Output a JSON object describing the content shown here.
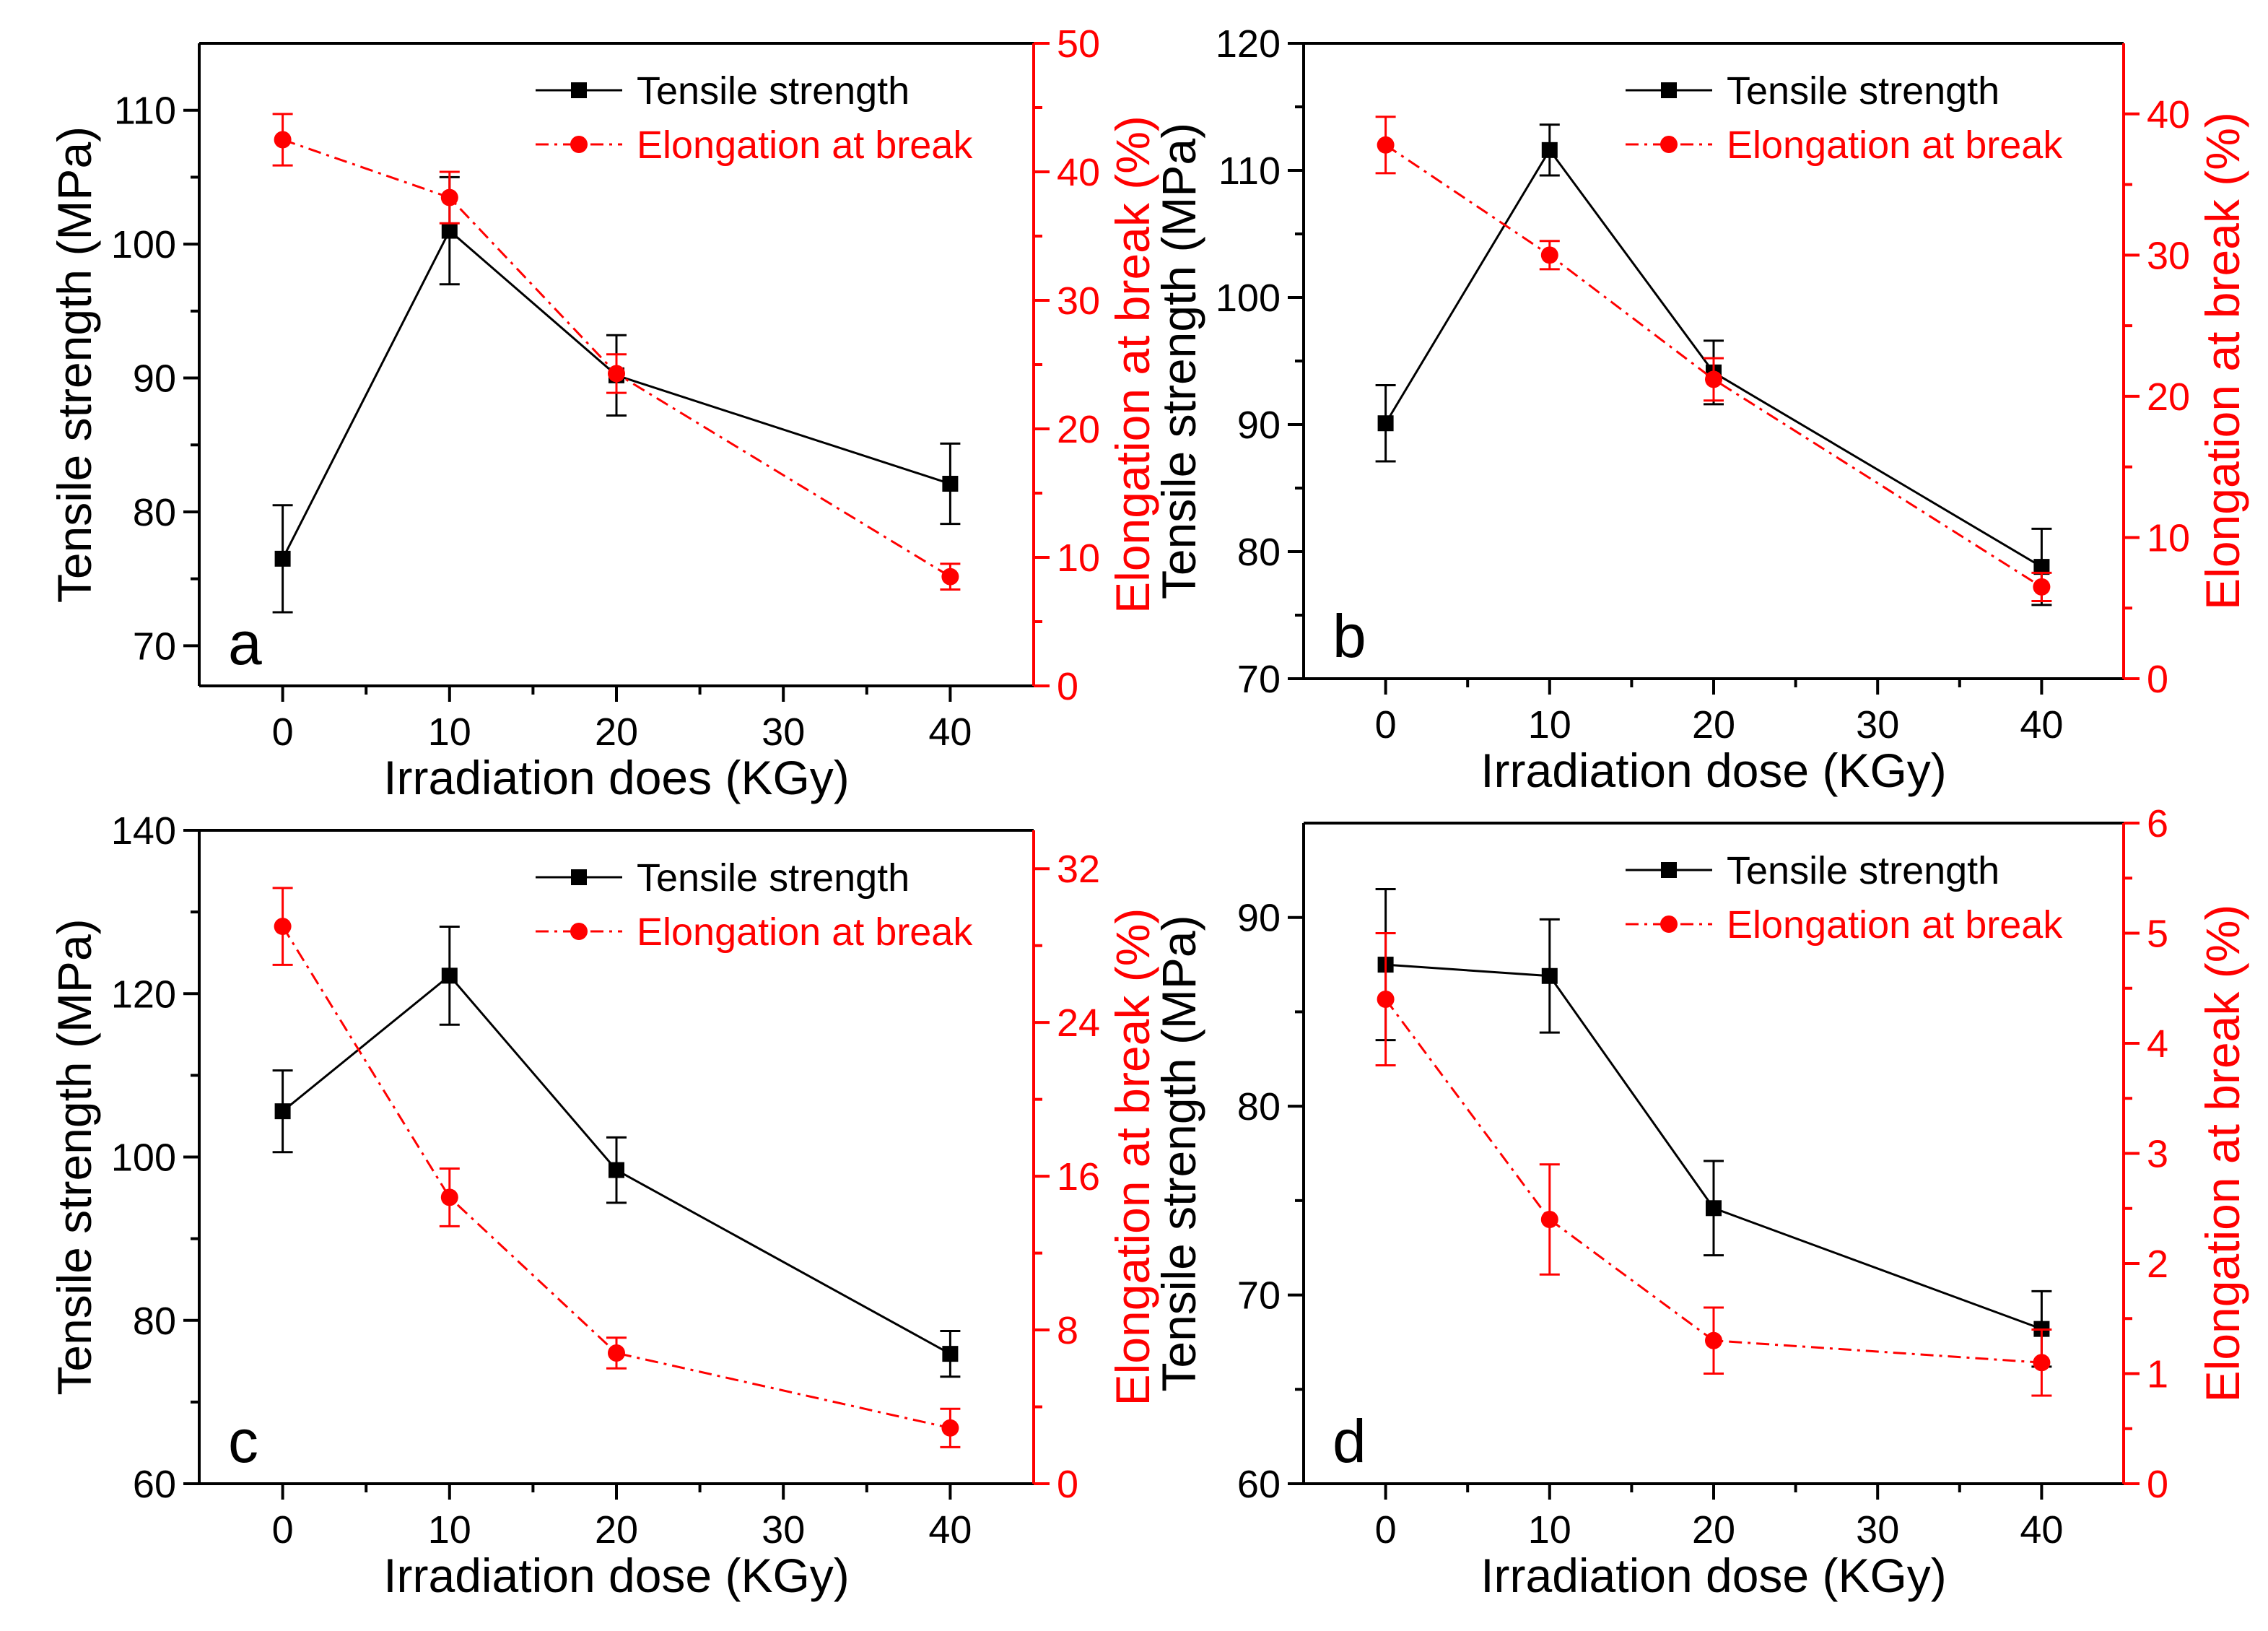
{
  "colors": {
    "ts": "#000000",
    "eb": "#ff0000",
    "axis": "#000000"
  },
  "legend_labels": {
    "ts": "Tensile strength",
    "eb": "Elongation at break"
  },
  "chart_data": [
    {
      "type": "line",
      "panel": "a",
      "xlabel": "Irradiation does (KGy)",
      "ylabel": "Tensile strength (MPa)",
      "y2label": "Elongation at break (%)",
      "xlim": [
        -5,
        45
      ],
      "xticks": [
        0,
        10,
        20,
        30,
        40
      ],
      "ylim": [
        67,
        115
      ],
      "yticks": [
        70,
        80,
        90,
        100,
        110
      ],
      "y2lim": [
        0,
        50
      ],
      "y2ticks": [
        0,
        10,
        20,
        30,
        40,
        50
      ],
      "legend_position": "top-right",
      "series": [
        {
          "name": "Tensile strength",
          "axis": "left",
          "style": "solid",
          "marker": "square",
          "x": [
            0,
            10,
            20,
            40
          ],
          "values": [
            76.5,
            101.0,
            90.2,
            82.1
          ],
          "errors": [
            4.0,
            4.0,
            3.0,
            3.0
          ]
        },
        {
          "name": "Elongation at break",
          "axis": "right",
          "style": "dash-dot",
          "marker": "circle",
          "x": [
            0,
            10,
            20,
            40
          ],
          "values": [
            42.5,
            38.0,
            24.3,
            8.5
          ],
          "errors": [
            2.0,
            2.0,
            1.5,
            1.0
          ]
        }
      ]
    },
    {
      "type": "line",
      "panel": "b",
      "xlabel": "Irradiation dose (KGy)",
      "ylabel": "Tensile strength (MPa)",
      "y2label": "Elongation at break (%)",
      "xlim": [
        -5,
        45
      ],
      "xticks": [
        0,
        10,
        20,
        30,
        40
      ],
      "ylim": [
        70,
        120
      ],
      "yticks": [
        70,
        80,
        90,
        100,
        110,
        120
      ],
      "y2lim": [
        0,
        45
      ],
      "y2ticks": [
        0,
        10,
        20,
        30,
        40
      ],
      "legend_position": "top-right",
      "series": [
        {
          "name": "Tensile strength",
          "axis": "left",
          "style": "solid",
          "marker": "square",
          "x": [
            0,
            10,
            20,
            40
          ],
          "values": [
            90.1,
            111.6,
            94.1,
            78.8
          ],
          "errors": [
            3.0,
            2.0,
            2.5,
            3.0
          ]
        },
        {
          "name": "Elongation at break",
          "axis": "right",
          "style": "dash-dot",
          "marker": "circle",
          "x": [
            0,
            10,
            20,
            40
          ],
          "values": [
            37.8,
            30.0,
            21.2,
            6.5
          ],
          "errors": [
            2.0,
            1.0,
            1.5,
            1.0
          ]
        }
      ]
    },
    {
      "type": "line",
      "panel": "c",
      "xlabel": "Irradiation dose (KGy)",
      "ylabel": "Tensile strength (MPa)",
      "y2label": "Elongation at break (%)",
      "xlim": [
        -5,
        45
      ],
      "xticks": [
        0,
        10,
        20,
        30,
        40
      ],
      "ylim": [
        60,
        140
      ],
      "yticks": [
        60,
        80,
        100,
        120,
        140
      ],
      "y2lim": [
        0,
        34
      ],
      "y2ticks": [
        0,
        8,
        16,
        24,
        32
      ],
      "legend_position": "top-right",
      "series": [
        {
          "name": "Tensile strength",
          "axis": "left",
          "style": "solid",
          "marker": "square",
          "x": [
            0,
            10,
            20,
            40
          ],
          "values": [
            105.6,
            122.2,
            98.4,
            75.9
          ],
          "errors": [
            5.0,
            6.0,
            4.0,
            2.8
          ]
        },
        {
          "name": "Elongation at break",
          "axis": "right",
          "style": "dash-dot",
          "marker": "circle",
          "x": [
            0,
            10,
            20,
            40
          ],
          "values": [
            29.0,
            14.9,
            6.8,
            2.9
          ],
          "errors": [
            2.0,
            1.5,
            0.8,
            1.0
          ]
        }
      ]
    },
    {
      "type": "line",
      "panel": "d",
      "xlabel": "Irradiation dose (KGy)",
      "ylabel": "Tensile strength (MPa)",
      "y2label": "Elongation at break (%)",
      "xlim": [
        -5,
        45
      ],
      "xticks": [
        0,
        10,
        20,
        30,
        40
      ],
      "ylim": [
        60,
        95
      ],
      "yticks": [
        60,
        70,
        80,
        90
      ],
      "y2lim": [
        0,
        6
      ],
      "y2ticks": [
        0,
        1,
        2,
        3,
        4,
        5,
        6
      ],
      "legend_position": "top-right",
      "series": [
        {
          "name": "Tensile strength",
          "axis": "left",
          "style": "solid",
          "marker": "square",
          "x": [
            0,
            10,
            20,
            40
          ],
          "values": [
            87.5,
            86.9,
            74.6,
            68.2
          ],
          "errors": [
            4.0,
            3.0,
            2.5,
            2.0
          ]
        },
        {
          "name": "Elongation at break",
          "axis": "right",
          "style": "dash-dot",
          "marker": "circle",
          "x": [
            0,
            10,
            20,
            40
          ],
          "values": [
            4.4,
            2.4,
            1.3,
            1.1
          ],
          "errors": [
            0.6,
            0.5,
            0.3,
            0.3
          ]
        }
      ]
    }
  ]
}
